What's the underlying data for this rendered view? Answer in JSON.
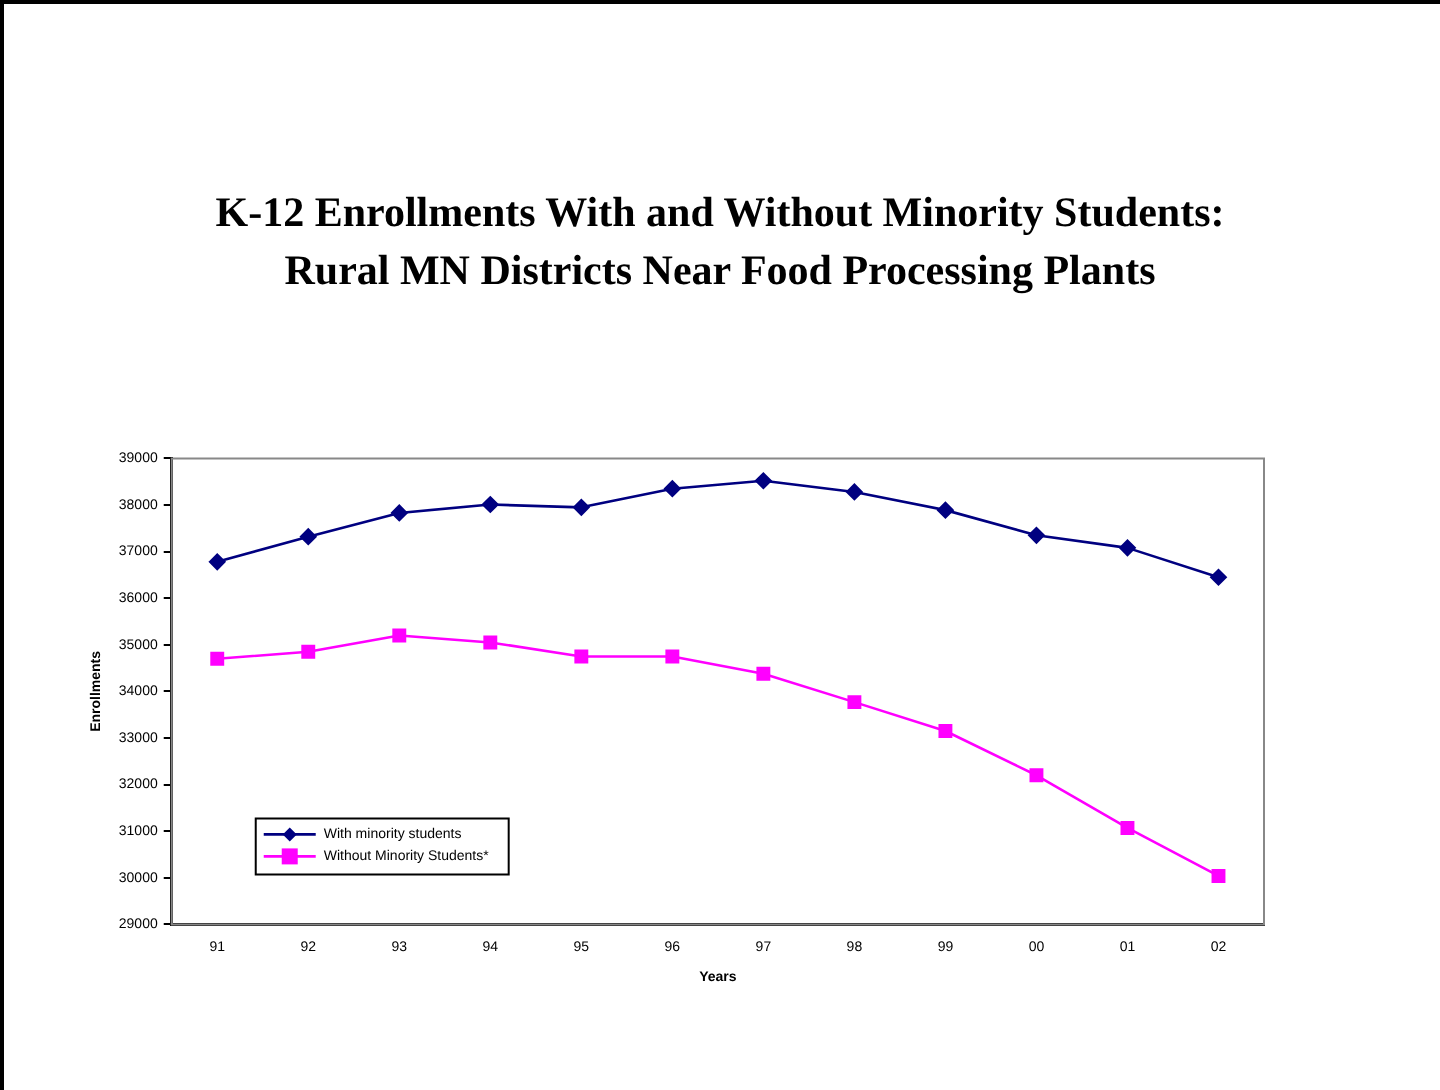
{
  "chart_data": {
    "type": "line",
    "title": "K-12 Enrollments With and Without Minority Students:\nRural MN Districts Near Food Processing Plants",
    "xlabel": "Years",
    "ylabel": "Enrollments",
    "categories": [
      "91",
      "92",
      "93",
      "94",
      "95",
      "96",
      "97",
      "98",
      "99",
      "00",
      "01",
      "02"
    ],
    "series": [
      {
        "name": "With minority students",
        "color": "#000080",
        "marker": "diamond",
        "values": [
          36780,
          37320,
          37830,
          38010,
          37950,
          38350,
          38520,
          38280,
          37890,
          37350,
          37080,
          36450
        ]
      },
      {
        "name": "Without Minority Students*",
        "color": "#ff00ff",
        "marker": "square",
        "values": [
          34700,
          34850,
          35200,
          35050,
          34750,
          34750,
          34380,
          33770,
          33150,
          32200,
          31070,
          30040
        ]
      }
    ],
    "ylim": [
      29000,
      39000
    ],
    "yticks": [
      29000,
      30000,
      31000,
      32000,
      33000,
      34000,
      35000,
      36000,
      37000,
      38000,
      39000
    ],
    "grid": false,
    "legend": "bottom left",
    "line_style": "solid"
  }
}
